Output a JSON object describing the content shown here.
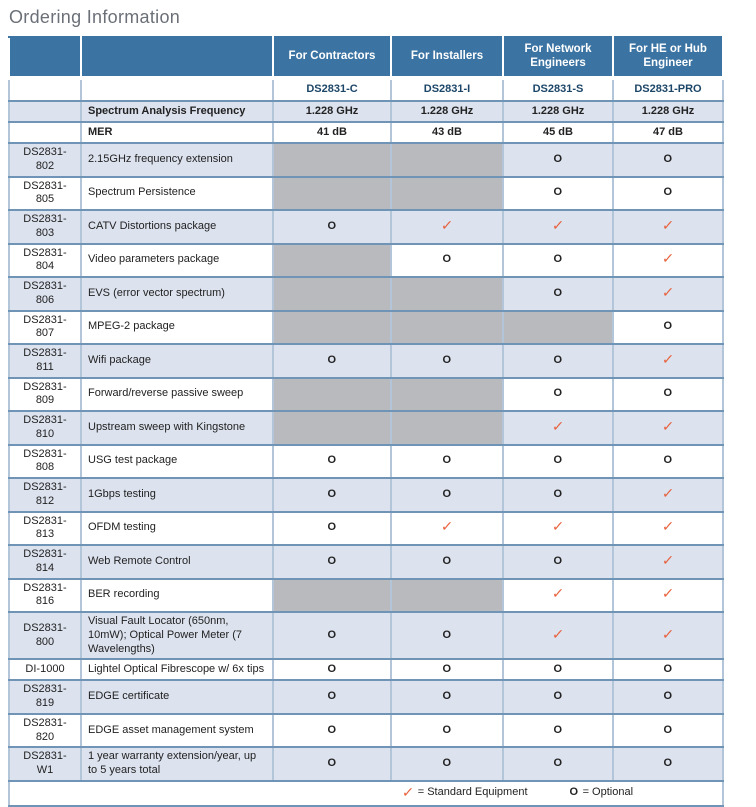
{
  "page_title": "Ordering Information",
  "symbols": {
    "check": "✓",
    "optional": "O"
  },
  "colors": {
    "header_bg": "#3b73a2",
    "tint_row_bg": "#dce2ee",
    "na_cell_bg": "#b9babe",
    "check_color": "#e8613c",
    "row_border": "#6f94b6",
    "outer_border": "#5f88ae",
    "model_text": "#1c4668",
    "title_text": "#6b7078"
  },
  "table": {
    "column_headers": [
      "For Contractors",
      "For Installers",
      "For Network Engineers",
      "For HE or Hub Engineer"
    ],
    "models": [
      "DS2831-C",
      "DS2831-I",
      "DS2831-S",
      "DS2831-PRO"
    ],
    "spec_rows": [
      {
        "label": "Spectrum Analysis Frequency",
        "values": [
          "1.228 GHz",
          "1.228 GHz",
          "1.228 GHz",
          "1.228 GHz"
        ]
      },
      {
        "label": "MER",
        "values": [
          "41 dB",
          "43 dB",
          "45 dB",
          "47 dB"
        ]
      }
    ],
    "feature_rows": [
      {
        "model": "DS2831-802",
        "description": "2.15GHz frequency extension",
        "values": [
          "na",
          "na",
          "O",
          "O"
        ]
      },
      {
        "model": "DS2831-805",
        "description": "Spectrum Persistence",
        "values": [
          "na",
          "na",
          "O",
          "O"
        ]
      },
      {
        "model": "DS2831-803",
        "description": "CATV Distortions package",
        "values": [
          "O",
          "check",
          "check",
          "check"
        ]
      },
      {
        "model": "DS2831-804",
        "description": "Video parameters package",
        "values": [
          "na",
          "O",
          "O",
          "check"
        ]
      },
      {
        "model": "DS2831-806",
        "description": "EVS (error vector spectrum)",
        "values": [
          "na",
          "na",
          "O",
          "check"
        ]
      },
      {
        "model": "DS2831-807",
        "description": "MPEG-2 package",
        "values": [
          "na",
          "na",
          "na",
          "O"
        ]
      },
      {
        "model": "DS2831-811",
        "description": "Wifi package",
        "values": [
          "O",
          "O",
          "O",
          "check"
        ]
      },
      {
        "model": "DS2831-809",
        "description": "Forward/reverse passive sweep",
        "values": [
          "na",
          "na",
          "O",
          "O"
        ]
      },
      {
        "model": "DS2831-810",
        "description": "Upstream sweep with Kingstone",
        "values": [
          "na",
          "na",
          "check",
          "check"
        ]
      },
      {
        "model": "DS2831-808",
        "description": "USG test package",
        "values": [
          "O",
          "O",
          "O",
          "O"
        ]
      },
      {
        "model": "DS2831-812",
        "description": "1Gbps testing",
        "values": [
          "O",
          "O",
          "O",
          "check"
        ]
      },
      {
        "model": "DS2831-813",
        "description": "OFDM testing",
        "values": [
          "O",
          "check",
          "check",
          "check"
        ]
      },
      {
        "model": "DS2831-814",
        "description": "Web Remote Control",
        "values": [
          "O",
          "O",
          "O",
          "check"
        ]
      },
      {
        "model": "DS2831-816",
        "description": "BER recording",
        "values": [
          "na",
          "na",
          "check",
          "check"
        ]
      },
      {
        "model": "DS2831-800",
        "description": "Visual Fault Locator (650nm, 10mW); Optical Power Meter (7 Wavelengths)",
        "values": [
          "O",
          "O",
          "check",
          "check"
        ]
      },
      {
        "model": "DI-1000",
        "description": "Lightel Optical Fibrescope w/ 6x tips",
        "values": [
          "O",
          "O",
          "O",
          "O"
        ]
      },
      {
        "model": "DS2831-819",
        "description": "EDGE certificate",
        "values": [
          "O",
          "O",
          "O",
          "O"
        ]
      },
      {
        "model": "DS2831-820",
        "description": "EDGE asset management system",
        "values": [
          "O",
          "O",
          "O",
          "O"
        ]
      },
      {
        "model": "DS2831-W1",
        "description": "1 year warranty extension/year, up to 5 years total",
        "values": [
          "O",
          "O",
          "O",
          "O"
        ]
      }
    ],
    "legend": {
      "standard_label": "= Standard Equipment",
      "optional_label": "= Optional"
    }
  }
}
